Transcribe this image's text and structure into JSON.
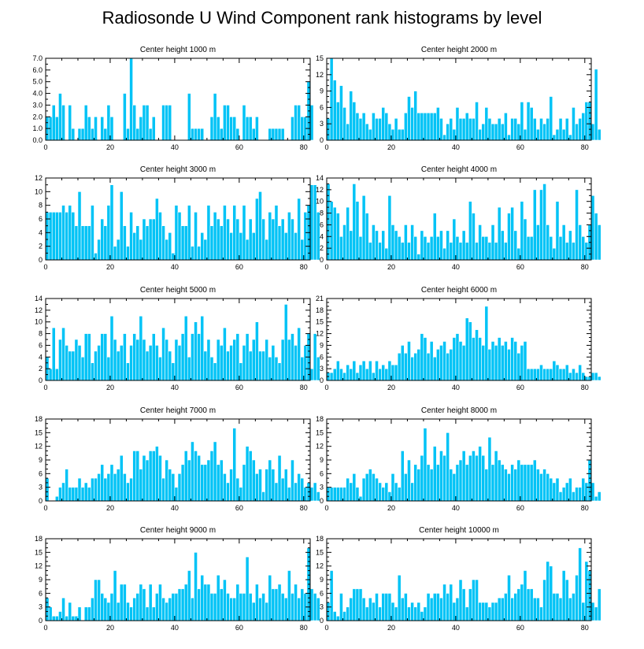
{
  "figure_title": "Radiosonde U Wind Component rank histograms by level",
  "colors": {
    "bar": "#00c3f6",
    "axis": "#000000",
    "background": "#ffffff"
  },
  "chart_data": [
    {
      "type": "bar",
      "title": "Center height 1000 m",
      "xlim": [
        0,
        82
      ],
      "xticks": [
        "0",
        "20",
        "40",
        "60",
        "80"
      ],
      "ylim": [
        0,
        7
      ],
      "yticks": [
        "0.0",
        "1.0",
        "2.0",
        "3.0",
        "4.0",
        "5.0",
        "6.0",
        "7.0"
      ],
      "values": [
        2,
        2,
        3,
        2,
        4,
        3,
        0,
        3,
        1,
        0,
        1,
        1,
        3,
        2,
        1,
        2,
        0,
        2,
        1,
        3,
        2,
        0,
        0,
        0,
        4,
        1,
        7,
        3,
        1,
        2,
        3,
        3,
        1,
        2,
        0,
        0,
        3,
        3,
        3,
        0,
        0,
        0,
        0,
        0,
        4,
        1,
        1,
        1,
        1,
        0,
        0,
        2,
        4,
        2,
        1,
        3,
        3,
        2,
        2,
        1,
        0,
        3,
        2,
        2,
        1,
        2,
        0,
        0,
        0,
        1,
        1,
        1,
        1,
        1,
        0,
        0,
        2,
        3,
        3,
        2,
        2,
        5,
        3
      ]
    },
    {
      "type": "bar",
      "title": "Center height 2000 m",
      "xlim": [
        0,
        82
      ],
      "xticks": [
        "0",
        "20",
        "40",
        "60",
        "80"
      ],
      "ylim": [
        0,
        15
      ],
      "yticks": [
        "0",
        "3",
        "6",
        "9",
        "12",
        "15"
      ],
      "values": [
        4,
        15,
        11,
        7,
        10,
        6,
        3,
        9,
        7,
        5,
        4,
        5,
        3,
        2,
        5,
        4,
        4,
        6,
        5,
        3,
        2,
        4,
        2,
        2,
        5,
        8,
        6,
        9,
        5,
        5,
        5,
        5,
        5,
        5,
        6,
        4,
        1,
        3,
        4,
        2,
        6,
        4,
        4,
        5,
        4,
        4,
        7,
        2,
        3,
        6,
        4,
        3,
        3,
        4,
        3,
        5,
        1,
        4,
        4,
        3,
        7,
        2,
        7,
        6,
        4,
        2,
        4,
        3,
        4,
        8,
        1,
        2,
        4,
        2,
        4,
        1,
        6,
        3,
        4,
        5,
        7,
        7,
        3,
        13,
        2
      ]
    },
    {
      "type": "bar",
      "title": "Center height 3000 m",
      "xlim": [
        0,
        82
      ],
      "xticks": [
        "0",
        "20",
        "40",
        "60",
        "80"
      ],
      "ylim": [
        0,
        12
      ],
      "yticks": [
        "0",
        "2",
        "4",
        "6",
        "8",
        "10",
        "12"
      ],
      "values": [
        7,
        7,
        7,
        7,
        7,
        8,
        7,
        8,
        7,
        5,
        10,
        5,
        5,
        5,
        8,
        1,
        3,
        6,
        5,
        8,
        11,
        2,
        3,
        10,
        5,
        2,
        7,
        4,
        5,
        3,
        6,
        5,
        6,
        6,
        9,
        7,
        5,
        3,
        4,
        1,
        8,
        7,
        5,
        5,
        8,
        2,
        7,
        2,
        4,
        3,
        8,
        5,
        7,
        6,
        5,
        8,
        6,
        4,
        8,
        6,
        4,
        8,
        3,
        6,
        4,
        9,
        10,
        6,
        3,
        7,
        6,
        8,
        5,
        6,
        4,
        7,
        6,
        4,
        9,
        3,
        7,
        8,
        11,
        11,
        7
      ]
    },
    {
      "type": "bar",
      "title": "Center height 4000 m",
      "xlim": [
        0,
        82
      ],
      "xticks": [
        "0",
        "20",
        "40",
        "60",
        "80"
      ],
      "ylim": [
        0,
        14
      ],
      "yticks": [
        "0",
        "2",
        "4",
        "6",
        "8",
        "10",
        "12",
        "14"
      ],
      "values": [
        13,
        10,
        9,
        8,
        4,
        6,
        9,
        5,
        13,
        10,
        4,
        11,
        8,
        3,
        6,
        5,
        3,
        5,
        2,
        11,
        6,
        5,
        4,
        3,
        6,
        3,
        6,
        4,
        1,
        5,
        4,
        3,
        4,
        8,
        4,
        5,
        2,
        5,
        3,
        7,
        4,
        3,
        5,
        3,
        10,
        8,
        3,
        6,
        4,
        4,
        3,
        6,
        3,
        9,
        5,
        3,
        8,
        9,
        5,
        2,
        10,
        7,
        4,
        4,
        12,
        6,
        12,
        13,
        6,
        4,
        2,
        10,
        4,
        6,
        3,
        5,
        3,
        12,
        6,
        4,
        3,
        6,
        11,
        8,
        6
      ]
    },
    {
      "type": "bar",
      "title": "Center height 5000 m",
      "xlim": [
        0,
        82
      ],
      "xticks": [
        "0",
        "20",
        "40",
        "60",
        "80"
      ],
      "ylim": [
        0,
        14
      ],
      "yticks": [
        "0",
        "2",
        "4",
        "6",
        "8",
        "10",
        "12",
        "14"
      ],
      "values": [
        4,
        2,
        9,
        2,
        7,
        9,
        6,
        5,
        5,
        7,
        6,
        4,
        8,
        8,
        3,
        5,
        6,
        8,
        8,
        4,
        11,
        7,
        5,
        6,
        8,
        3,
        6,
        8,
        7,
        11,
        7,
        5,
        6,
        8,
        6,
        4,
        9,
        7,
        5,
        3,
        7,
        6,
        8,
        11,
        4,
        8,
        10,
        8,
        11,
        5,
        7,
        4,
        3,
        7,
        6,
        9,
        5,
        6,
        7,
        8,
        3,
        6,
        8,
        5,
        7,
        10,
        5,
        5,
        7,
        4,
        6,
        4,
        3,
        7,
        13,
        7,
        8,
        6,
        9,
        4,
        6,
        8,
        2,
        8,
        4
      ]
    },
    {
      "type": "bar",
      "title": "Center height 6000 m",
      "xlim": [
        0,
        82
      ],
      "xticks": [
        "0",
        "20",
        "40",
        "60",
        "80"
      ],
      "ylim": [
        0,
        21
      ],
      "yticks": [
        "0",
        "3",
        "6",
        "9",
        "12",
        "15",
        "18",
        "21"
      ],
      "values": [
        2,
        2,
        3,
        5,
        3,
        2,
        4,
        3,
        5,
        2,
        4,
        5,
        3,
        5,
        2,
        5,
        3,
        4,
        3,
        5,
        4,
        4,
        7,
        9,
        7,
        10,
        6,
        7,
        8,
        12,
        11,
        7,
        10,
        6,
        8,
        9,
        10,
        7,
        8,
        11,
        12,
        10,
        9,
        16,
        15,
        11,
        13,
        11,
        9,
        19,
        8,
        10,
        9,
        11,
        9,
        10,
        8,
        11,
        10,
        7,
        9,
        10,
        3,
        3,
        3,
        3,
        4,
        3,
        3,
        3,
        5,
        4,
        3,
        3,
        4,
        2,
        3,
        2,
        4,
        2,
        1,
        1,
        2,
        2,
        1
      ]
    },
    {
      "type": "bar",
      "title": "Center height 7000 m",
      "xlim": [
        0,
        82
      ],
      "xticks": [
        "0",
        "20",
        "40",
        "60",
        "80"
      ],
      "ylim": [
        0,
        18
      ],
      "yticks": [
        "0",
        "3",
        "6",
        "9",
        "12",
        "15",
        "18"
      ],
      "values": [
        5,
        0,
        0,
        1,
        3,
        4,
        7,
        3,
        3,
        3,
        5,
        3,
        4,
        3,
        5,
        5,
        6,
        8,
        5,
        6,
        8,
        6,
        7,
        10,
        6,
        4,
        5,
        11,
        11,
        7,
        10,
        9,
        11,
        11,
        12,
        10,
        5,
        9,
        7,
        6,
        3,
        6,
        8,
        11,
        9,
        13,
        11,
        10,
        8,
        8,
        9,
        11,
        13,
        8,
        9,
        6,
        4,
        7,
        16,
        5,
        3,
        8,
        12,
        11,
        9,
        6,
        7,
        2,
        7,
        9,
        7,
        4,
        10,
        5,
        7,
        3,
        9,
        4,
        6,
        5,
        3,
        4,
        3,
        4,
        2
      ]
    },
    {
      "type": "bar",
      "title": "Center height 8000 m",
      "xlim": [
        0,
        82
      ],
      "xticks": [
        "0",
        "20",
        "40",
        "60",
        "80"
      ],
      "ylim": [
        0,
        18
      ],
      "yticks": [
        "0",
        "3",
        "6",
        "9",
        "12",
        "15",
        "18"
      ],
      "values": [
        3,
        3,
        3,
        3,
        3,
        3,
        5,
        4,
        6,
        3,
        1,
        5,
        6,
        7,
        6,
        5,
        4,
        3,
        4,
        2,
        6,
        4,
        3,
        11,
        6,
        9,
        4,
        8,
        7,
        10,
        16,
        8,
        7,
        12,
        8,
        11,
        10,
        15,
        7,
        6,
        8,
        9,
        11,
        8,
        10,
        11,
        10,
        12,
        10,
        7,
        14,
        8,
        11,
        9,
        8,
        7,
        6,
        8,
        7,
        9,
        8,
        8,
        8,
        8,
        9,
        7,
        6,
        7,
        6,
        5,
        4,
        5,
        2,
        3,
        4,
        5,
        2,
        3,
        3,
        5,
        4,
        9,
        4,
        1,
        2
      ]
    },
    {
      "type": "bar",
      "title": "Center height 9000 m",
      "xlim": [
        0,
        82
      ],
      "xticks": [
        "0",
        "20",
        "40",
        "60",
        "80"
      ],
      "ylim": [
        0,
        18
      ],
      "yticks": [
        "0",
        "3",
        "6",
        "9",
        "12",
        "15",
        "18"
      ],
      "values": [
        5,
        3,
        1,
        1,
        2,
        5,
        1,
        4,
        1,
        1,
        3,
        0,
        3,
        3,
        5,
        9,
        9,
        6,
        5,
        4,
        6,
        11,
        4,
        8,
        8,
        4,
        3,
        5,
        6,
        8,
        7,
        3,
        8,
        3,
        6,
        8,
        5,
        4,
        5,
        6,
        6,
        7,
        7,
        8,
        11,
        5,
        15,
        7,
        10,
        8,
        8,
        6,
        6,
        10,
        7,
        9,
        6,
        5,
        5,
        8,
        6,
        6,
        14,
        6,
        4,
        8,
        5,
        6,
        4,
        10,
        7,
        7,
        8,
        6,
        5,
        11,
        6,
        8,
        5,
        7,
        6,
        16,
        7,
        6,
        5
      ]
    },
    {
      "type": "bar",
      "title": "Center height 10000 m",
      "xlim": [
        0,
        82
      ],
      "xticks": [
        "0",
        "20",
        "40",
        "60",
        "80"
      ],
      "ylim": [
        0,
        18
      ],
      "yticks": [
        "0",
        "3",
        "6",
        "9",
        "12",
        "15",
        "18"
      ],
      "values": [
        4,
        11,
        2,
        1,
        6,
        2,
        3,
        5,
        7,
        7,
        7,
        5,
        3,
        5,
        4,
        6,
        3,
        6,
        6,
        6,
        4,
        3,
        10,
        5,
        6,
        3,
        4,
        3,
        4,
        2,
        3,
        6,
        5,
        6,
        6,
        5,
        8,
        6,
        8,
        4,
        5,
        9,
        7,
        3,
        7,
        9,
        9,
        4,
        4,
        4,
        3,
        4,
        4,
        5,
        5,
        6,
        10,
        5,
        6,
        7,
        8,
        11,
        7,
        7,
        5,
        5,
        3,
        9,
        13,
        12,
        6,
        6,
        5,
        11,
        9,
        5,
        6,
        10,
        16,
        4,
        13,
        11,
        4,
        3,
        7
      ]
    }
  ]
}
